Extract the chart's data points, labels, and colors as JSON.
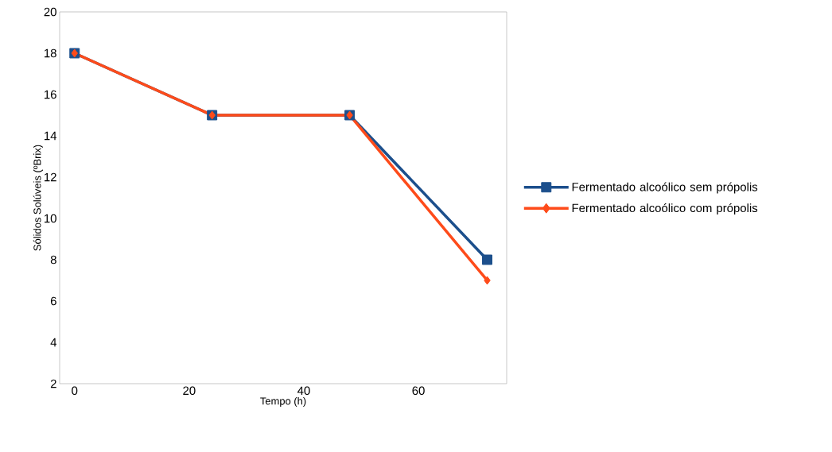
{
  "chart_data": {
    "type": "line",
    "xlabel": "Tempo (h)",
    "ylabel": "Sólidos Solúveis (ºBrix)",
    "x": [
      0,
      24,
      48,
      72
    ],
    "series": [
      {
        "name": "Fermentado alcoólico sem própolis",
        "color": "#1c4f8c",
        "marker": "square",
        "values": [
          18,
          15,
          15,
          8
        ]
      },
      {
        "name": "Fermentado alcoólico com própolis",
        "color": "#fe4b1a",
        "marker": "diamond",
        "values": [
          18,
          15,
          15,
          7
        ]
      }
    ],
    "xlim": [
      -2.6,
      75.4
    ],
    "xticks": [
      0,
      20,
      40,
      60
    ],
    "ylim": [
      2,
      20
    ],
    "yticks": [
      2,
      4,
      6,
      8,
      10,
      12,
      14,
      16,
      18,
      20
    ],
    "grid": false,
    "legend": "right",
    "line_style": "solid"
  }
}
